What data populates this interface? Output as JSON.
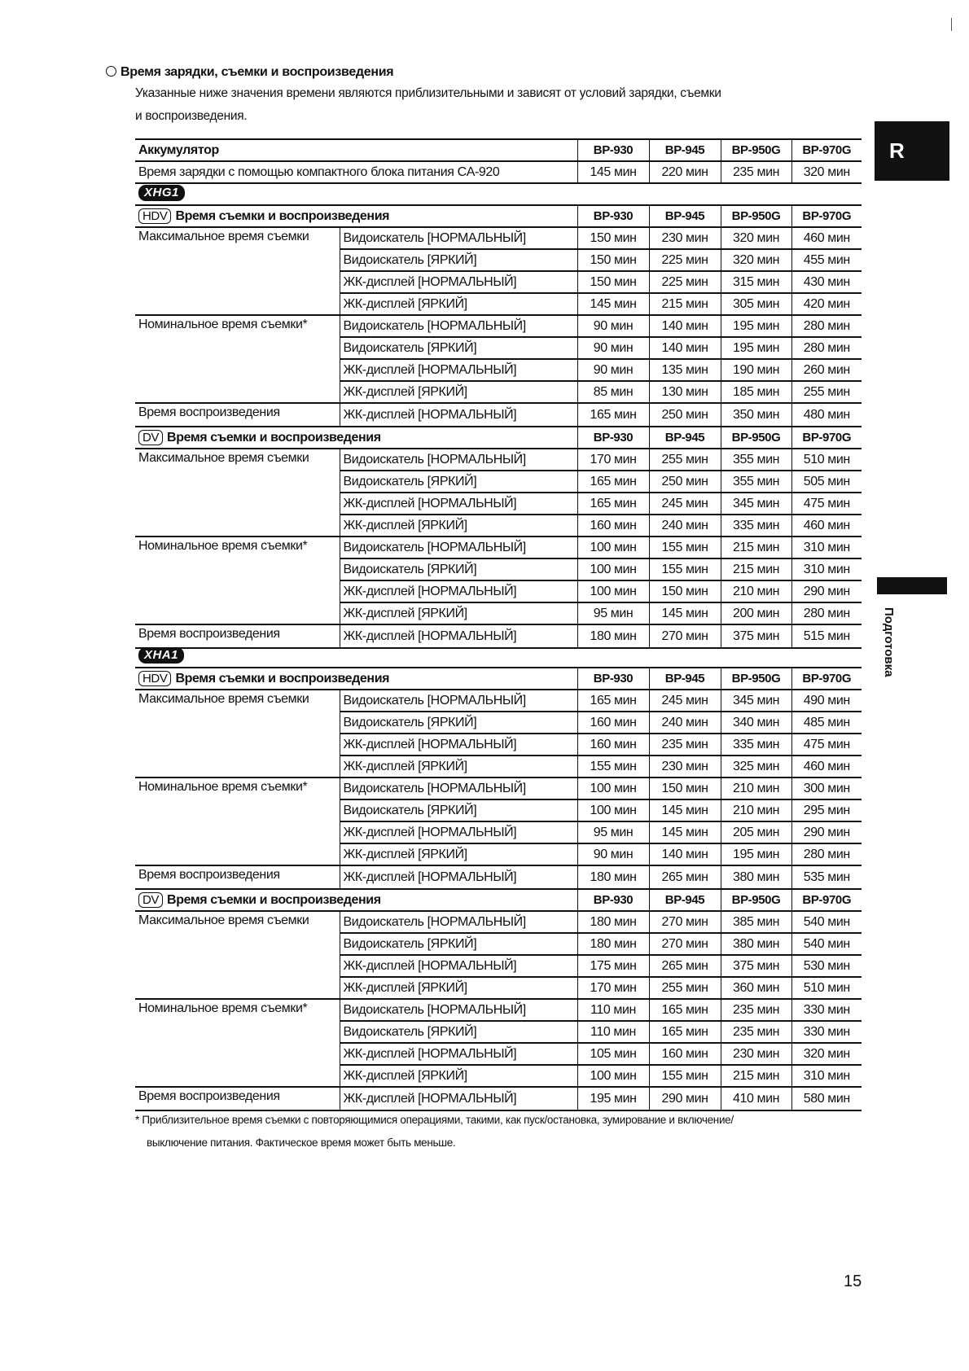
{
  "title": "Время зарядки, съемки и воспроизведения",
  "intro": [
    "Указанные ниже значения времени являются приблизительными и зависят от условий зарядки, съемки",
    "и воспроизведения."
  ],
  "columns": [
    "BP-930",
    "BP-945",
    "BP-950G",
    "BP-970G"
  ],
  "unit": "мин",
  "battery_table": {
    "header": "Аккумулятор",
    "row_label": "Время зарядки с помощью компактного блока питания CA-920",
    "values": [
      145,
      220,
      235,
      320
    ]
  },
  "groups": [
    {
      "label": "Максимальное время съемки",
      "modes": [
        "Видоискатель [НОРМАЛЬНЫЙ]",
        "Видоискатель [ЯРКИЙ]",
        "ЖК-дисплей [НОРМАЛЬНЫЙ]",
        "ЖК-дисплей [ЯРКИЙ]"
      ]
    },
    {
      "label": "Номинальное время съемки*",
      "modes": [
        "Видоискатель [НОРМАЛЬНЫЙ]",
        "Видоискатель [ЯРКИЙ]",
        "ЖК-дисплей [НОРМАЛЬНЫЙ]",
        "ЖК-дисплей [ЯРКИЙ]"
      ]
    },
    {
      "label": "Время воспроизведения",
      "modes": [
        "ЖК-дисплей [НОРМАЛЬНЫЙ]"
      ]
    }
  ],
  "section_title": "Время съемки и воспроизведения",
  "models": [
    {
      "name": "XHG1",
      "sections": [
        {
          "format": "HDV",
          "values": [
            [
              150,
              230,
              320,
              460
            ],
            [
              150,
              225,
              320,
              455
            ],
            [
              150,
              225,
              315,
              430
            ],
            [
              145,
              215,
              305,
              420
            ],
            [
              90,
              140,
              195,
              280
            ],
            [
              90,
              140,
              195,
              280
            ],
            [
              90,
              135,
              190,
              260
            ],
            [
              85,
              130,
              185,
              255
            ],
            [
              165,
              250,
              350,
              480
            ]
          ]
        },
        {
          "format": "DV",
          "values": [
            [
              170,
              255,
              355,
              510
            ],
            [
              165,
              250,
              355,
              505
            ],
            [
              165,
              245,
              345,
              475
            ],
            [
              160,
              240,
              335,
              460
            ],
            [
              100,
              155,
              215,
              310
            ],
            [
              100,
              155,
              215,
              310
            ],
            [
              100,
              150,
              210,
              290
            ],
            [
              95,
              145,
              200,
              280
            ],
            [
              180,
              270,
              375,
              515
            ]
          ]
        }
      ]
    },
    {
      "name": "XHA1",
      "sections": [
        {
          "format": "HDV",
          "values": [
            [
              165,
              245,
              345,
              490
            ],
            [
              160,
              240,
              340,
              485
            ],
            [
              160,
              235,
              335,
              475
            ],
            [
              155,
              230,
              325,
              460
            ],
            [
              100,
              150,
              210,
              300
            ],
            [
              100,
              145,
              210,
              295
            ],
            [
              95,
              145,
              205,
              290
            ],
            [
              90,
              140,
              195,
              280
            ],
            [
              180,
              265,
              380,
              535
            ]
          ]
        },
        {
          "format": "DV",
          "values": [
            [
              180,
              270,
              385,
              540
            ],
            [
              180,
              270,
              380,
              540
            ],
            [
              175,
              265,
              375,
              530
            ],
            [
              170,
              255,
              360,
              510
            ],
            [
              110,
              165,
              235,
              330
            ],
            [
              110,
              165,
              235,
              330
            ],
            [
              105,
              160,
              230,
              320
            ],
            [
              100,
              155,
              215,
              310
            ],
            [
              195,
              290,
              410,
              580
            ]
          ]
        }
      ]
    }
  ],
  "footnote": [
    "*  Приблизительное время съемки с повторяющимися операциями, такими, как пуск/остановка, зумирование и включение/",
    "выключение питания. Фактическое время может быть меньше."
  ],
  "side_tab": {
    "letter": "R",
    "section": "Подготовка"
  },
  "page_number": "15"
}
